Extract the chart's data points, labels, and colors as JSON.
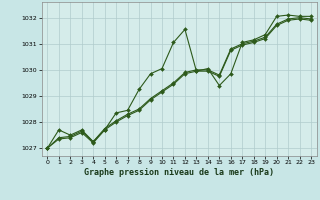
{
  "title": "Graphe pression niveau de la mer (hPa)",
  "background_color": "#c8e6e6",
  "plot_background_color": "#d5ecea",
  "grid_color": "#b0cccc",
  "line_color": "#2d5a1b",
  "marker_color": "#2d5a1b",
  "xlim": [
    -0.5,
    23.5
  ],
  "ylim": [
    1026.7,
    1032.6
  ],
  "yticks": [
    1027,
    1028,
    1029,
    1030,
    1031,
    1032
  ],
  "xticks": [
    0,
    1,
    2,
    3,
    4,
    5,
    6,
    7,
    8,
    9,
    10,
    11,
    12,
    13,
    14,
    15,
    16,
    17,
    18,
    19,
    20,
    21,
    22,
    23
  ],
  "series1_x": [
    0,
    1,
    2,
    3,
    4,
    5,
    6,
    7,
    8,
    9,
    10,
    11,
    12,
    13,
    14,
    15,
    16,
    17,
    18,
    19,
    20,
    21,
    22,
    23
  ],
  "series1_y": [
    1027.0,
    1027.7,
    1027.5,
    1027.7,
    1027.25,
    1027.7,
    1028.35,
    1028.45,
    1029.25,
    1029.85,
    1030.05,
    1031.05,
    1031.55,
    1029.95,
    1030.05,
    1029.4,
    1029.85,
    1031.05,
    1031.15,
    1031.35,
    1032.05,
    1032.1,
    1032.05,
    1032.05
  ],
  "series2_x": [
    0,
    1,
    2,
    3,
    4,
    5,
    6,
    7,
    8,
    9,
    10,
    11,
    12,
    13,
    14,
    15,
    16,
    17,
    18,
    19,
    20,
    21,
    22,
    23
  ],
  "series2_y": [
    1027.0,
    1027.4,
    1027.45,
    1027.65,
    1027.25,
    1027.75,
    1028.05,
    1028.3,
    1028.5,
    1028.9,
    1029.2,
    1029.5,
    1029.9,
    1030.0,
    1030.0,
    1029.8,
    1030.8,
    1031.0,
    1031.1,
    1031.25,
    1031.75,
    1031.95,
    1032.0,
    1031.95
  ],
  "series3_x": [
    0,
    1,
    2,
    3,
    4,
    5,
    6,
    7,
    8,
    9,
    10,
    11,
    12,
    13,
    14,
    15,
    16,
    17,
    18,
    19,
    20,
    21,
    22,
    23
  ],
  "series3_y": [
    1027.0,
    1027.35,
    1027.4,
    1027.6,
    1027.2,
    1027.7,
    1028.0,
    1028.25,
    1028.45,
    1028.85,
    1029.15,
    1029.45,
    1029.85,
    1029.95,
    1029.95,
    1029.75,
    1030.75,
    1030.95,
    1031.05,
    1031.2,
    1031.7,
    1031.9,
    1031.95,
    1031.9
  ]
}
